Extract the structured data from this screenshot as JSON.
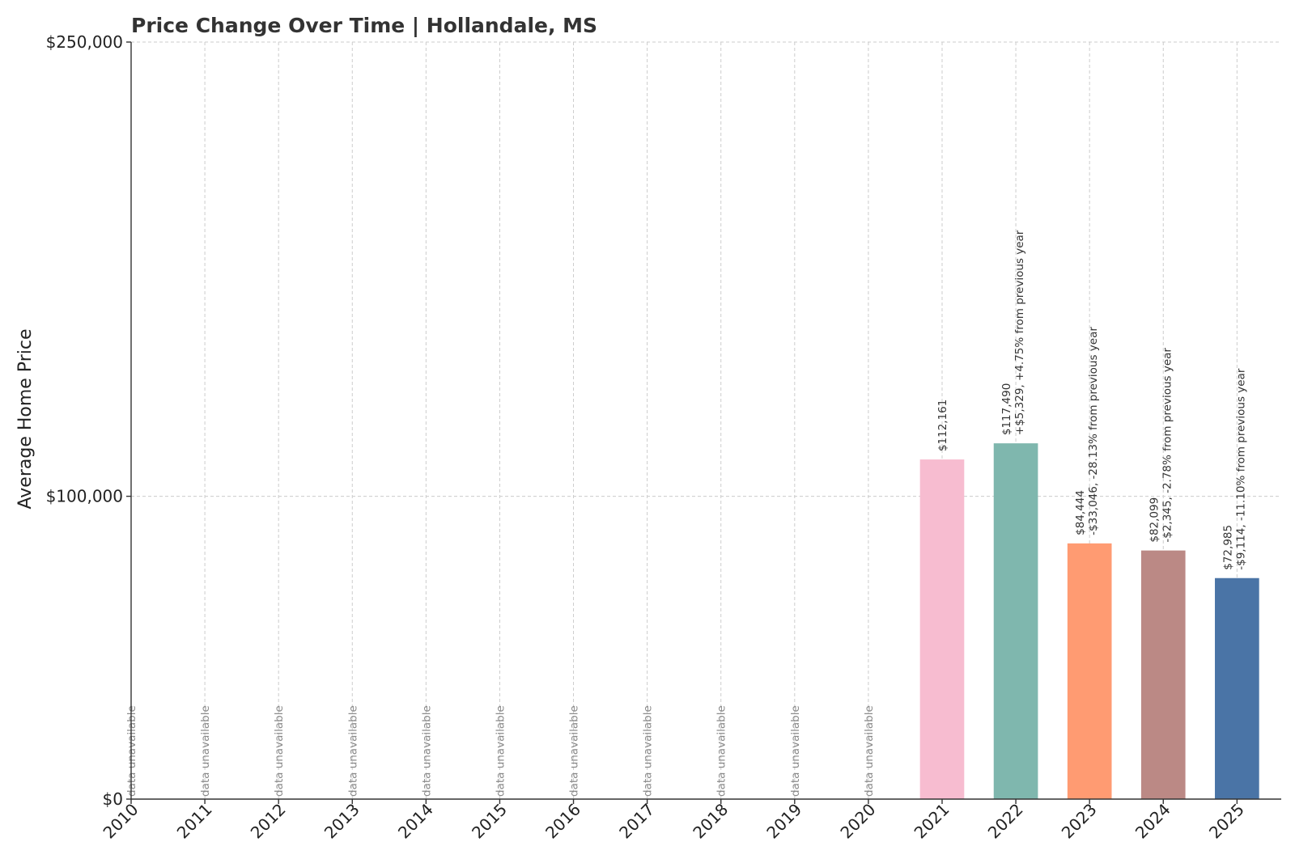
{
  "chart_data": {
    "type": "bar",
    "title": "Price Change Over Time | Hollandale, MS",
    "xlabel": "",
    "ylabel": "Average Home Price",
    "ylim": [
      0,
      250000
    ],
    "yticks": [
      0,
      100000,
      250000
    ],
    "ytick_labels": [
      "$0",
      "$100,000",
      "$250,000"
    ],
    "grid": true,
    "categories": [
      "2010",
      "2011",
      "2012",
      "2013",
      "2014",
      "2015",
      "2016",
      "2017",
      "2018",
      "2019",
      "2020",
      "2021",
      "2022",
      "2023",
      "2024",
      "2025"
    ],
    "values": [
      null,
      null,
      null,
      null,
      null,
      null,
      null,
      null,
      null,
      null,
      null,
      112161,
      117490,
      84444,
      82099,
      72985
    ],
    "value_labels": [
      null,
      null,
      null,
      null,
      null,
      null,
      null,
      null,
      null,
      null,
      null,
      "$112,161",
      "$117,490",
      "$84,444",
      "$82,099",
      "$72,985"
    ],
    "change_labels": [
      null,
      null,
      null,
      null,
      null,
      null,
      null,
      null,
      null,
      null,
      null,
      null,
      "+$5,329, +4.75% from previous year",
      "-$33,046, -28.13% from previous year",
      "-$2,345, -2.78% from previous year",
      "-$9,114, -11.10% from previous year"
    ],
    "missing_label": "data unavailable",
    "colors": [
      "#f7bcd0",
      "#7fb7ae",
      "#ff9b72",
      "#bb8985",
      "#4a74a6"
    ]
  }
}
